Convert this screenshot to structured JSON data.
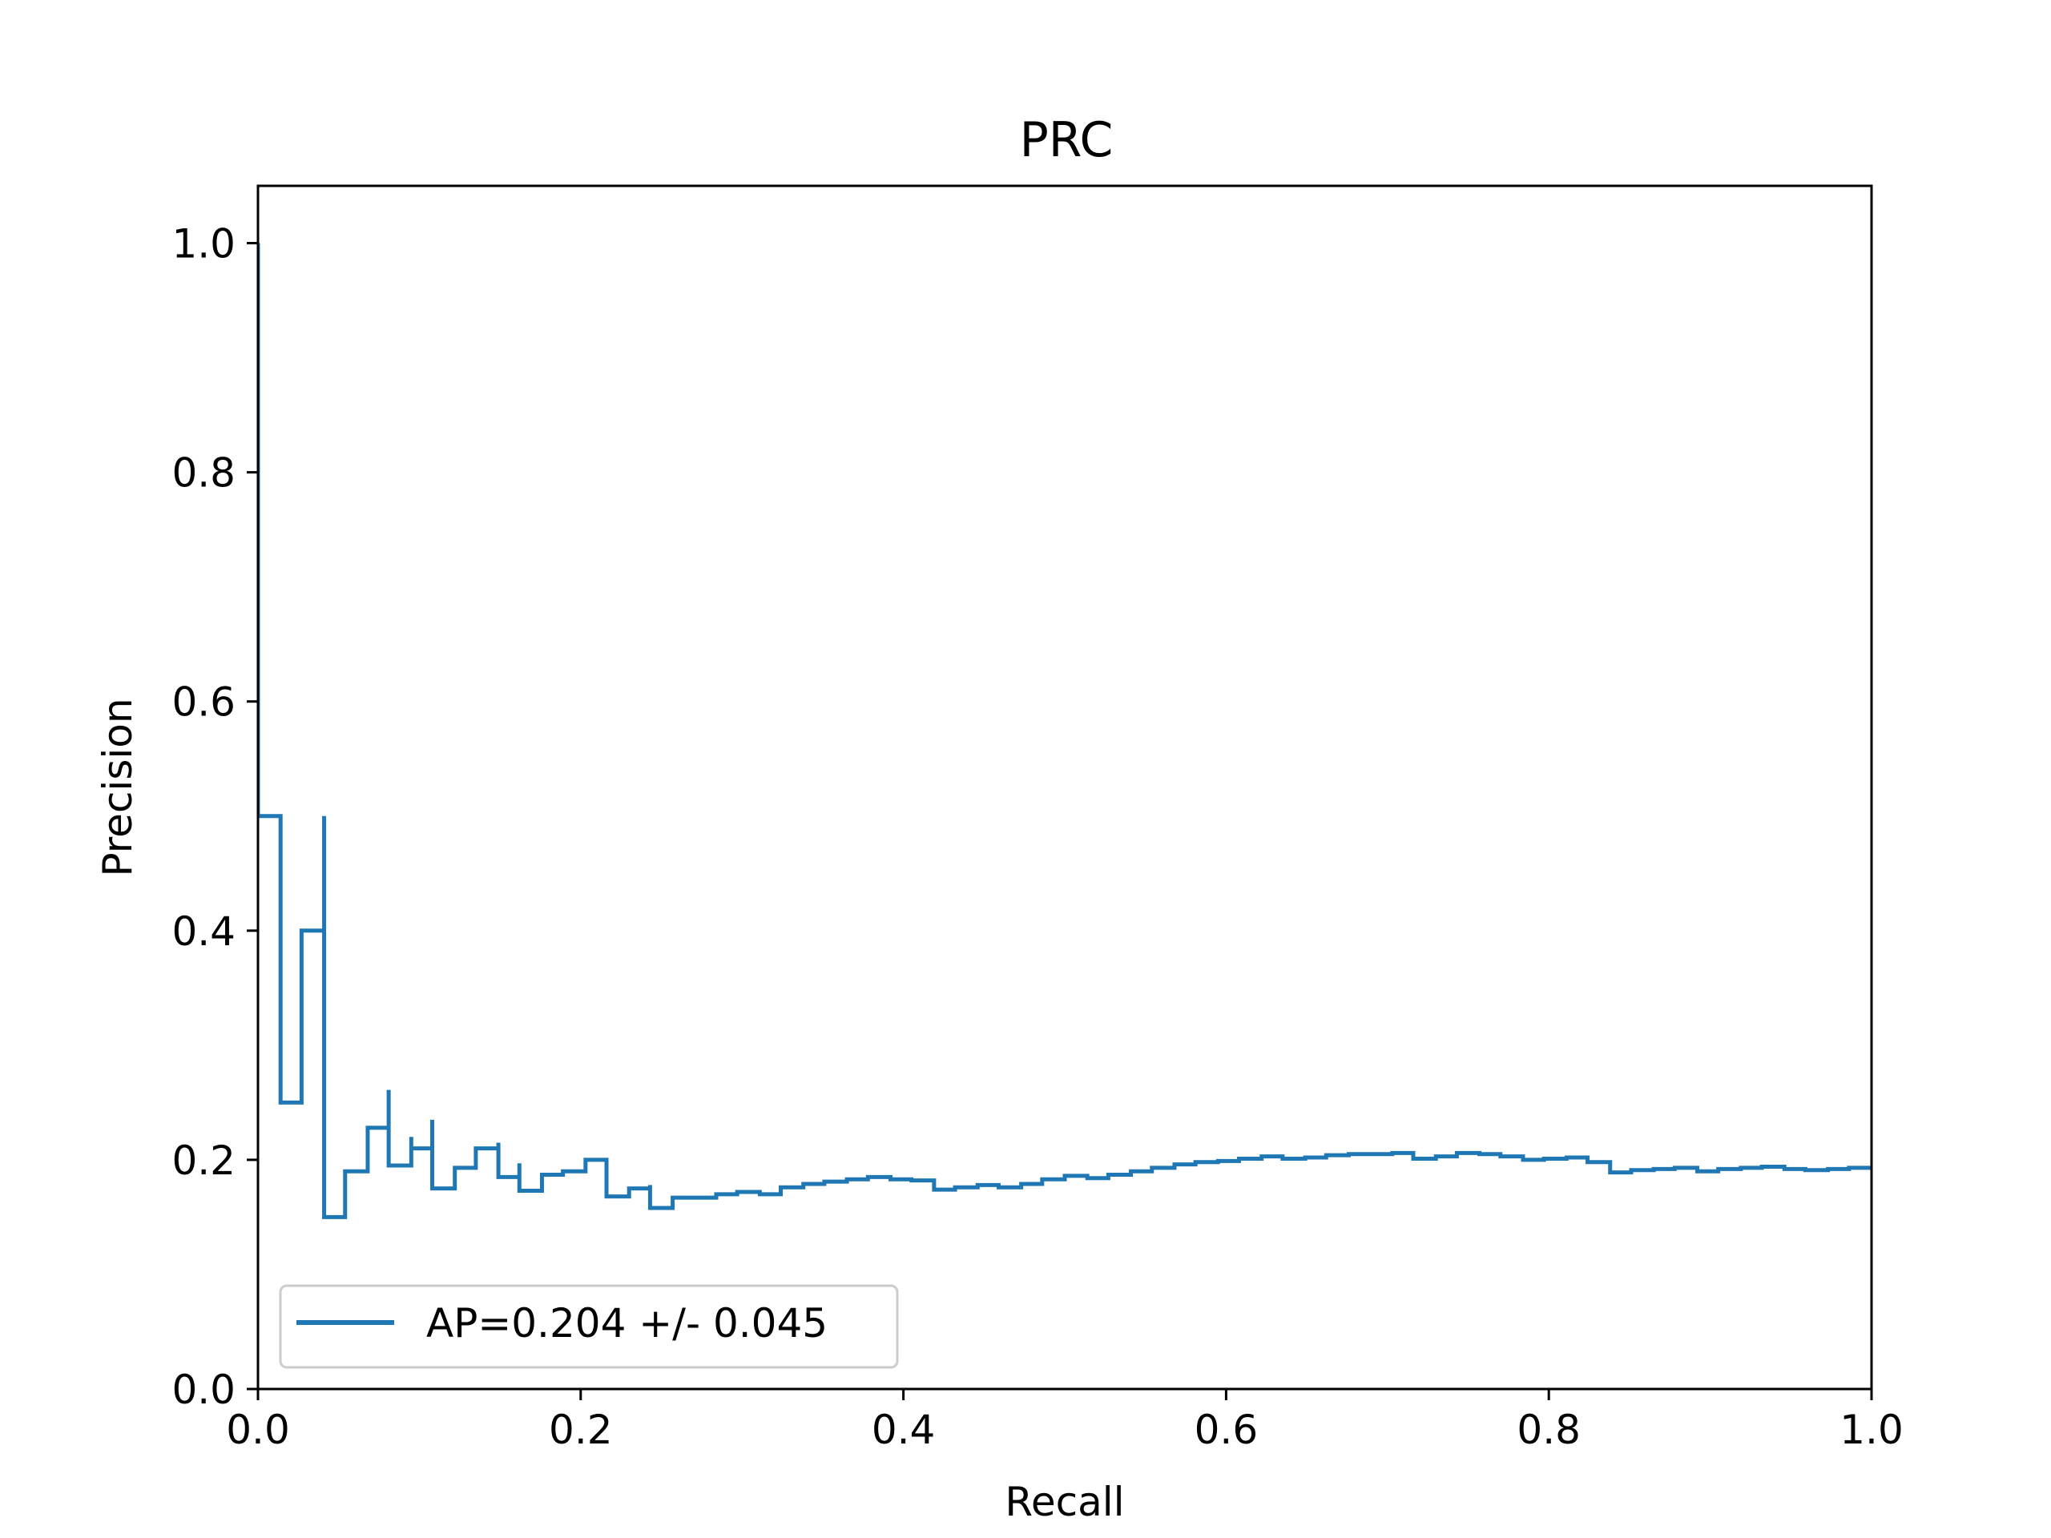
{
  "chart_data": {
    "type": "line",
    "step": true,
    "title": "PRC",
    "xlabel": "Recall",
    "ylabel": "Precision",
    "xlim": [
      0.0,
      1.0
    ],
    "ylim": [
      0.0,
      1.05
    ],
    "xticks": [
      0.0,
      0.2,
      0.4,
      0.6,
      0.8,
      1.0
    ],
    "xtick_labels": [
      "0.0",
      "0.2",
      "0.4",
      "0.6",
      "0.8",
      "1.0"
    ],
    "yticks": [
      0.0,
      0.2,
      0.4,
      0.6,
      0.8,
      1.0
    ],
    "ytick_labels": [
      "0.0",
      "0.2",
      "0.4",
      "0.6",
      "0.8",
      "1.0"
    ],
    "grid": false,
    "legend_position": "lower-left",
    "series": [
      {
        "name": "AP=0.204 +/- 0.045",
        "color": "#1f77b4",
        "x": [
          0.0,
          0.0,
          0.014,
          0.014,
          0.027,
          0.041,
          0.041,
          0.054,
          0.068,
          0.081,
          0.081,
          0.095,
          0.095,
          0.108,
          0.108,
          0.122,
          0.135,
          0.149,
          0.149,
          0.162,
          0.162,
          0.176,
          0.189,
          0.203,
          0.216,
          0.216,
          0.23,
          0.243,
          0.243,
          0.257,
          0.27,
          0.284,
          0.297,
          0.311,
          0.324,
          0.338,
          0.351,
          0.365,
          0.378,
          0.392,
          0.405,
          0.419,
          0.432,
          0.446,
          0.459,
          0.473,
          0.486,
          0.5,
          0.514,
          0.527,
          0.541,
          0.554,
          0.568,
          0.581,
          0.595,
          0.608,
          0.622,
          0.635,
          0.649,
          0.662,
          0.676,
          0.689,
          0.703,
          0.716,
          0.73,
          0.743,
          0.757,
          0.77,
          0.784,
          0.797,
          0.811,
          0.824,
          0.838,
          0.838,
          0.851,
          0.865,
          0.878,
          0.892,
          0.905,
          0.919,
          0.932,
          0.946,
          0.959,
          0.973,
          0.986,
          1.0
        ],
        "y": [
          1.0,
          0.5,
          0.5,
          0.25,
          0.4,
          0.5,
          0.15,
          0.19,
          0.228,
          0.261,
          0.195,
          0.22,
          0.21,
          0.235,
          0.175,
          0.193,
          0.21,
          0.215,
          0.185,
          0.197,
          0.173,
          0.187,
          0.19,
          0.2,
          0.2,
          0.168,
          0.175,
          0.178,
          0.158,
          0.167,
          0.167,
          0.17,
          0.172,
          0.17,
          0.176,
          0.179,
          0.181,
          0.183,
          0.185,
          0.183,
          0.182,
          0.174,
          0.176,
          0.178,
          0.176,
          0.179,
          0.183,
          0.186,
          0.184,
          0.187,
          0.19,
          0.193,
          0.196,
          0.198,
          0.199,
          0.201,
          0.203,
          0.201,
          0.202,
          0.204,
          0.205,
          0.205,
          0.206,
          0.201,
          0.203,
          0.206,
          0.205,
          0.203,
          0.2,
          0.201,
          0.202,
          0.198,
          0.198,
          0.189,
          0.191,
          0.192,
          0.193,
          0.19,
          0.192,
          0.193,
          0.194,
          0.192,
          0.191,
          0.192,
          0.193,
          0.193
        ]
      }
    ]
  }
}
